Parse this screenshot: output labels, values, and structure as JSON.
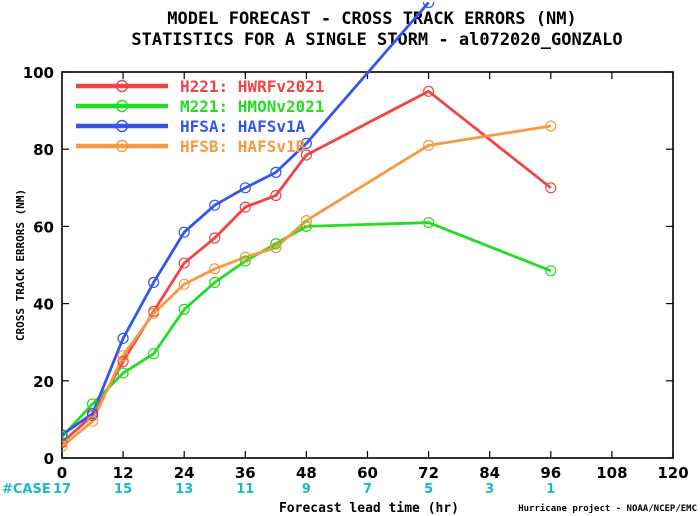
{
  "title": {
    "line1": "MODEL FORECAST - CROSS TRACK ERRORS (NM)",
    "line2": "STATISTICS FOR A SINGLE STORM - al072020_GONZALO"
  },
  "credit": "Hurricane project - NOAA/NCEP/EMC",
  "case_label": "#CASE",
  "chart_data": {
    "type": "line",
    "title": "MODEL FORECAST - CROSS TRACK ERRORS (NM)",
    "subtitle": "STATISTICS FOR A SINGLE STORM - al072020_GONZALO",
    "xlabel": "Forecast lead time (hr)",
    "ylabel": "CROSS TRACK ERRORS (NM)",
    "xlim": [
      0,
      120
    ],
    "ylim": [
      0,
      100
    ],
    "x_ticks": [
      0,
      12,
      24,
      36,
      48,
      60,
      72,
      84,
      96,
      108,
      120
    ],
    "y_ticks": [
      0,
      20,
      40,
      60,
      80,
      100
    ],
    "grid": false,
    "legend_position": "top-left",
    "case_counts": [
      {
        "hour": 0,
        "count": 17
      },
      {
        "hour": 12,
        "count": 15
      },
      {
        "hour": 24,
        "count": 13
      },
      {
        "hour": 36,
        "count": 11
      },
      {
        "hour": 48,
        "count": 9
      },
      {
        "hour": 60,
        "count": 7
      },
      {
        "hour": 72,
        "count": 5
      },
      {
        "hour": 84,
        "count": 3
      },
      {
        "hour": 96,
        "count": 1
      }
    ],
    "series": [
      {
        "name": "H221: HWRFv2021",
        "color": "#f04545",
        "x": [
          0,
          6,
          12,
          18,
          24,
          30,
          36,
          42,
          48,
          72,
          96
        ],
        "y": [
          4,
          11,
          25,
          38,
          50.5,
          57,
          65,
          68,
          78.5,
          95,
          70
        ]
      },
      {
        "name": "M221: HMONv2021",
        "color": "#22dd22",
        "x": [
          0,
          6,
          12,
          18,
          24,
          30,
          36,
          42,
          48,
          72,
          96
        ],
        "y": [
          5.5,
          14,
          22,
          27,
          38.5,
          45.5,
          51,
          55.5,
          60,
          61,
          48.5
        ]
      },
      {
        "name": "HFSA: HAFSv1A",
        "color": "#3355ee",
        "x": [
          0,
          6,
          12,
          18,
          24,
          30,
          36,
          42,
          48,
          72
        ],
        "y": [
          6,
          11.5,
          31,
          45.5,
          58.5,
          65.5,
          70,
          74,
          81.5,
          118
        ]
      },
      {
        "name": "HFSB: HAFSv1B",
        "color": "#f59a40",
        "x": [
          0,
          6,
          12,
          18,
          24,
          30,
          36,
          42,
          48,
          72,
          96
        ],
        "y": [
          3,
          9.5,
          26.5,
          37.5,
          45,
          49,
          52,
          54.5,
          61.5,
          81,
          86
        ]
      }
    ]
  }
}
